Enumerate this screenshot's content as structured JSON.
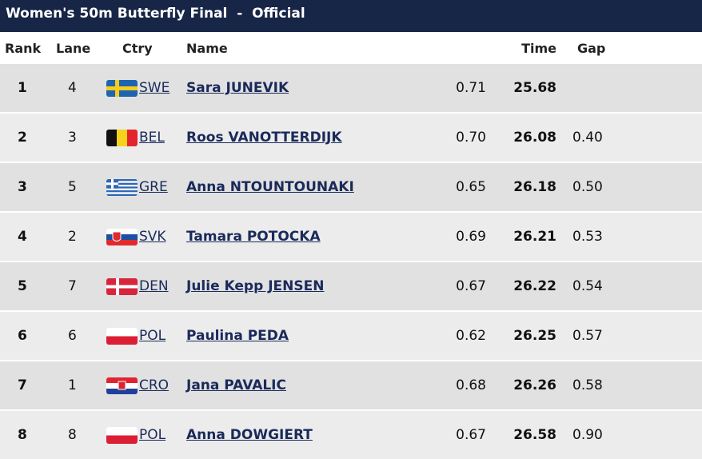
{
  "header": {
    "title": "Women's 50m Butterfly Final  -  Official"
  },
  "table": {
    "columns": {
      "rank": "Rank",
      "lane": "Lane",
      "ctry": "Ctry",
      "name": "Name",
      "time": "Time",
      "gap": "Gap"
    },
    "rows": [
      {
        "rank": "1",
        "lane": "4",
        "ctry": "SWE",
        "name": "Sara JUNEVIK",
        "reaction": "0.71",
        "time": "25.68"
      },
      {
        "rank": "2",
        "lane": "3",
        "ctry": "BEL",
        "name": "Roos VANOTTERDIJK",
        "reaction": "0.70",
        "time": "26.08",
        "gap": "0.40"
      },
      {
        "rank": "3",
        "lane": "5",
        "ctry": "GRE",
        "name": "Anna NTOUNTOUNAKI",
        "reaction": "0.65",
        "time": "26.18",
        "gap": "0.50"
      },
      {
        "rank": "4",
        "lane": "2",
        "ctry": "SVK",
        "name": "Tamara POTOCKA",
        "reaction": "0.69",
        "time": "26.21",
        "gap": "0.53"
      },
      {
        "rank": "5",
        "lane": "7",
        "ctry": "DEN",
        "name": "Julie Kepp JENSEN",
        "reaction": "0.67",
        "time": "26.22",
        "gap": "0.54"
      },
      {
        "rank": "6",
        "lane": "6",
        "ctry": "POL",
        "name": "Paulina PEDA",
        "reaction": "0.62",
        "time": "26.25",
        "gap": "0.57"
      },
      {
        "rank": "7",
        "lane": "1",
        "ctry": "CRO",
        "name": "Jana PAVALIC",
        "reaction": "0.68",
        "time": "26.26",
        "gap": "0.58"
      },
      {
        "rank": "8",
        "lane": "8",
        "ctry": "POL",
        "name": "Anna DOWGIERT",
        "reaction": "0.67",
        "time": "26.58",
        "gap": "0.90"
      }
    ]
  }
}
